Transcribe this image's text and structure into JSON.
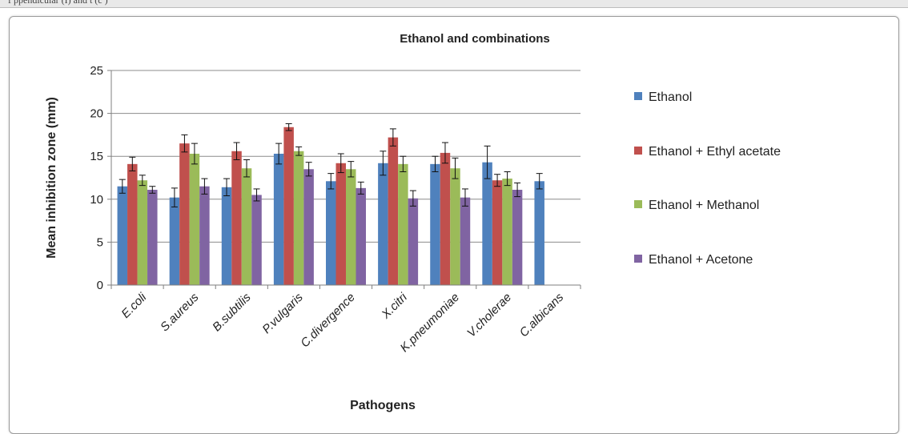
{
  "page": {
    "top_caption": "f                                                        ppendicular   (I)  and t    (c   )"
  },
  "chart_data": {
    "type": "bar",
    "title": "Ethanol and combinations",
    "xlabel": "Pathogens",
    "ylabel": "Mean inhibition zone (mm)",
    "ylim": [
      0,
      25
    ],
    "yticks": [
      0,
      5,
      10,
      15,
      20,
      25
    ],
    "grid": true,
    "legend_position": "right",
    "categories": [
      "E.coli",
      "S.aureus",
      "B.subtilis",
      "P.vulgaris",
      "C.divergence",
      "X.citri",
      "K.pneumoniae",
      "V.cholerae",
      "C.albicans"
    ],
    "series": [
      {
        "name": "Ethanol",
        "color": "#4f81bd",
        "values": [
          11.5,
          10.2,
          11.4,
          15.3,
          12.1,
          14.2,
          14.1,
          14.3,
          12.1
        ],
        "errors": [
          0.8,
          1.1,
          1.0,
          1.2,
          0.9,
          1.4,
          0.9,
          1.9,
          0.9
        ]
      },
      {
        "name": "Ethanol + Ethyl acetate",
        "color": "#c0504d",
        "values": [
          14.1,
          16.5,
          15.6,
          18.4,
          14.2,
          17.2,
          15.4,
          12.2,
          null
        ],
        "errors": [
          0.8,
          1.0,
          1.0,
          0.4,
          1.1,
          1.0,
          1.2,
          0.7,
          null
        ]
      },
      {
        "name": "Ethanol + Methanol",
        "color": "#9bbb59",
        "values": [
          12.2,
          15.3,
          13.6,
          15.6,
          13.5,
          14.1,
          13.6,
          12.4,
          null
        ],
        "errors": [
          0.6,
          1.2,
          1.0,
          0.5,
          0.9,
          0.9,
          1.2,
          0.8,
          null
        ]
      },
      {
        "name": "Ethanol + Acetone",
        "color": "#8064a2",
        "values": [
          11.1,
          11.5,
          10.5,
          13.5,
          11.3,
          10.1,
          10.2,
          11.1,
          null
        ],
        "errors": [
          0.4,
          0.9,
          0.7,
          0.8,
          0.7,
          0.9,
          1.0,
          0.8,
          null
        ]
      }
    ]
  }
}
